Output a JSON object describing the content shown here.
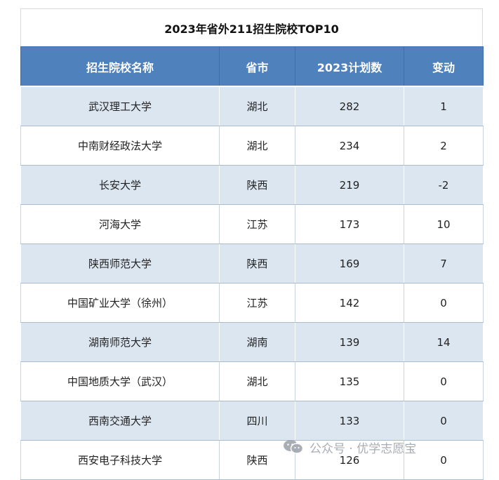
{
  "title": "2023年省外211招生院校TOP10",
  "headers": [
    "招生院校名称",
    "省市",
    "2023计划数",
    "变动"
  ],
  "rows": [
    [
      "武汉理工大学",
      "湖北",
      "282",
      "1"
    ],
    [
      "中南财经政法大学",
      "湖北",
      "234",
      "2"
    ],
    [
      "长安大学",
      "陕西",
      "219",
      "-2"
    ],
    [
      "河海大学",
      "江苏",
      "173",
      "10"
    ],
    [
      "陕西师范大学",
      "陕西",
      "169",
      "7"
    ],
    [
      "中国矿业大学（徐州）",
      "江苏",
      "142",
      "0"
    ],
    [
      "湖南师范大学",
      "湖南",
      "139",
      "14"
    ],
    [
      "中国地质大学（武汉）",
      "湖北",
      "135",
      "0"
    ],
    [
      "西南交通大学",
      "四川",
      "133",
      "0"
    ],
    [
      "西安电子科技大学",
      "陕西",
      "126",
      "0"
    ]
  ],
  "watermark": "公众号 · 优学志愿宝",
  "watermark_icon": "wechat-icon",
  "colors": {
    "header_bg": "#4f81bd",
    "band_bg": "#dce6f1"
  }
}
